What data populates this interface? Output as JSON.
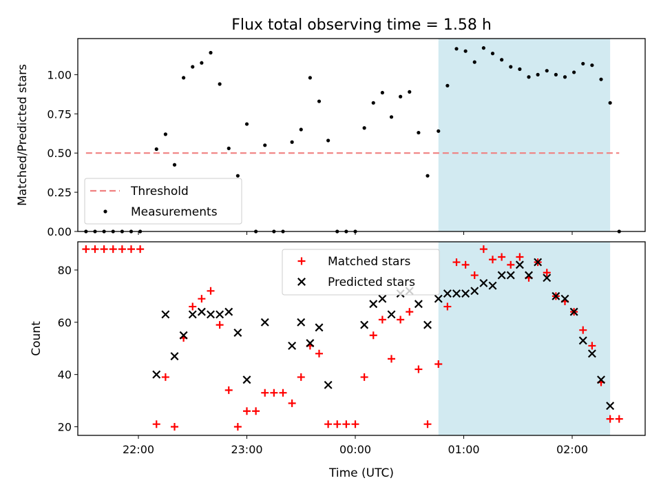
{
  "title": "Flux total observing time = 1.58 h",
  "chart_data": [
    {
      "type": "scatter",
      "panel": "top",
      "ylabel": "Matched/Predicted stars",
      "ylim": [
        0,
        1.23
      ],
      "yticks": [
        0.0,
        0.25,
        0.5,
        0.75,
        1.0
      ],
      "ytick_labels": [
        "0.00",
        "0.25",
        "0.50",
        "0.75",
        "1.00"
      ],
      "highlight_span": {
        "start": "00:46",
        "end": "02:21",
        "color": "#add8e6"
      },
      "threshold": {
        "name": "Threshold",
        "value": 0.5,
        "x_start": "21:31",
        "x_end": "02:26",
        "color": "#f08080"
      },
      "legend": {
        "position": "lower-left",
        "entries": [
          "Threshold",
          "Measurements"
        ]
      },
      "series": [
        {
          "name": "Measurements",
          "color": "#000000",
          "x": [
            "21:31",
            "21:36",
            "21:41",
            "21:46",
            "21:51",
            "21:56",
            "22:01",
            "22:10",
            "22:15",
            "22:20",
            "22:25",
            "22:30",
            "22:35",
            "22:40",
            "22:45",
            "22:50",
            "22:55",
            "23:00",
            "23:05",
            "23:10",
            "23:15",
            "23:20",
            "23:25",
            "23:30",
            "23:35",
            "23:40",
            "23:45",
            "23:50",
            "23:55",
            "00:00",
            "00:05",
            "00:10",
            "00:15",
            "00:20",
            "00:25",
            "00:30",
            "00:35",
            "00:40",
            "00:46",
            "00:51",
            "00:56",
            "01:01",
            "01:06",
            "01:11",
            "01:16",
            "01:21",
            "01:26",
            "01:31",
            "01:36",
            "01:41",
            "01:46",
            "01:51",
            "01:56",
            "02:01",
            "02:06",
            "02:11",
            "02:16",
            "02:21",
            "02:26"
          ],
          "y": [
            0.0,
            0.0,
            0.0,
            0.0,
            0.0,
            0.0,
            0.0,
            0.525,
            0.62,
            0.425,
            0.98,
            1.05,
            1.075,
            1.14,
            0.94,
            0.53,
            0.355,
            0.685,
            0.0,
            0.55,
            0.0,
            0.0,
            0.57,
            0.65,
            0.98,
            0.83,
            0.58,
            0.0,
            0.0,
            0.0,
            0.66,
            0.82,
            0.885,
            0.73,
            0.86,
            0.89,
            0.63,
            0.355,
            0.64,
            0.93,
            1.165,
            1.15,
            1.08,
            1.17,
            1.135,
            1.095,
            1.05,
            1.035,
            0.985,
            1.0,
            1.025,
            1.0,
            0.985,
            1.015,
            1.07,
            1.06,
            0.97,
            0.82,
            0.0
          ]
        }
      ]
    },
    {
      "type": "scatter",
      "panel": "bottom",
      "xlabel": "Time (UTC)",
      "ylabel": "Count",
      "ylim": [
        16.7,
        90.8
      ],
      "yticks": [
        20,
        40,
        60,
        80
      ],
      "xticks": [
        "22:00",
        "23:00",
        "00:00",
        "01:00",
        "02:00"
      ],
      "highlight_span": {
        "start": "00:46",
        "end": "02:21",
        "color": "#add8e6"
      },
      "legend": {
        "position": "upper-center",
        "entries": [
          "Matched stars",
          "Predicted stars"
        ]
      },
      "series": [
        {
          "name": "Matched stars",
          "color": "#ff0000",
          "marker": "+",
          "x": [
            "21:31",
            "21:36",
            "21:41",
            "21:46",
            "21:51",
            "21:56",
            "22:01",
            "22:10",
            "22:15",
            "22:20",
            "22:25",
            "22:30",
            "22:35",
            "22:40",
            "22:45",
            "22:50",
            "22:55",
            "23:00",
            "23:05",
            "23:10",
            "23:15",
            "23:20",
            "23:25",
            "23:30",
            "23:35",
            "23:40",
            "23:45",
            "23:50",
            "23:55",
            "00:00",
            "00:05",
            "00:10",
            "00:15",
            "00:20",
            "00:25",
            "00:30",
            "00:35",
            "00:40",
            "00:46",
            "00:51",
            "00:56",
            "01:01",
            "01:06",
            "01:11",
            "01:16",
            "01:21",
            "01:26",
            "01:31",
            "01:36",
            "01:41",
            "01:46",
            "01:51",
            "01:56",
            "02:01",
            "02:06",
            "02:11",
            "02:16",
            "02:21",
            "02:26"
          ],
          "y": [
            88,
            88,
            88,
            88,
            88,
            88,
            88,
            21,
            39,
            20,
            54,
            66,
            69,
            72,
            59,
            34,
            20,
            26,
            26,
            33,
            33,
            33,
            29,
            39,
            51,
            48,
            21,
            21,
            21,
            21,
            39,
            55,
            61,
            46,
            61,
            64,
            42,
            21,
            44,
            66,
            83,
            82,
            78,
            88,
            84,
            85,
            82,
            85,
            77,
            83,
            79,
            70,
            68,
            64,
            57,
            51,
            37,
            23,
            23
          ]
        },
        {
          "name": "Predicted stars",
          "color": "#000000",
          "marker": "x",
          "x": [
            "22:10",
            "22:15",
            "22:20",
            "22:25",
            "22:30",
            "22:35",
            "22:40",
            "22:45",
            "22:50",
            "22:55",
            "23:00",
            "23:10",
            "23:25",
            "23:30",
            "23:35",
            "23:40",
            "23:45",
            "00:05",
            "00:10",
            "00:15",
            "00:20",
            "00:25",
            "00:30",
            "00:35",
            "00:40",
            "00:46",
            "00:51",
            "00:56",
            "01:01",
            "01:06",
            "01:11",
            "01:16",
            "01:21",
            "01:26",
            "01:31",
            "01:36",
            "01:41",
            "01:46",
            "01:51",
            "01:56",
            "02:01",
            "02:06",
            "02:11",
            "02:16",
            "02:21"
          ],
          "y": [
            40,
            63,
            47,
            55,
            63,
            64,
            63,
            63,
            64,
            56,
            38,
            60,
            51,
            60,
            52,
            58,
            36,
            59,
            67,
            69,
            63,
            71,
            72,
            67,
            59,
            69,
            71,
            71,
            71,
            72,
            75,
            74,
            78,
            78,
            82,
            78,
            83,
            77,
            70,
            69,
            64,
            53,
            48,
            38,
            28
          ]
        }
      ]
    }
  ]
}
